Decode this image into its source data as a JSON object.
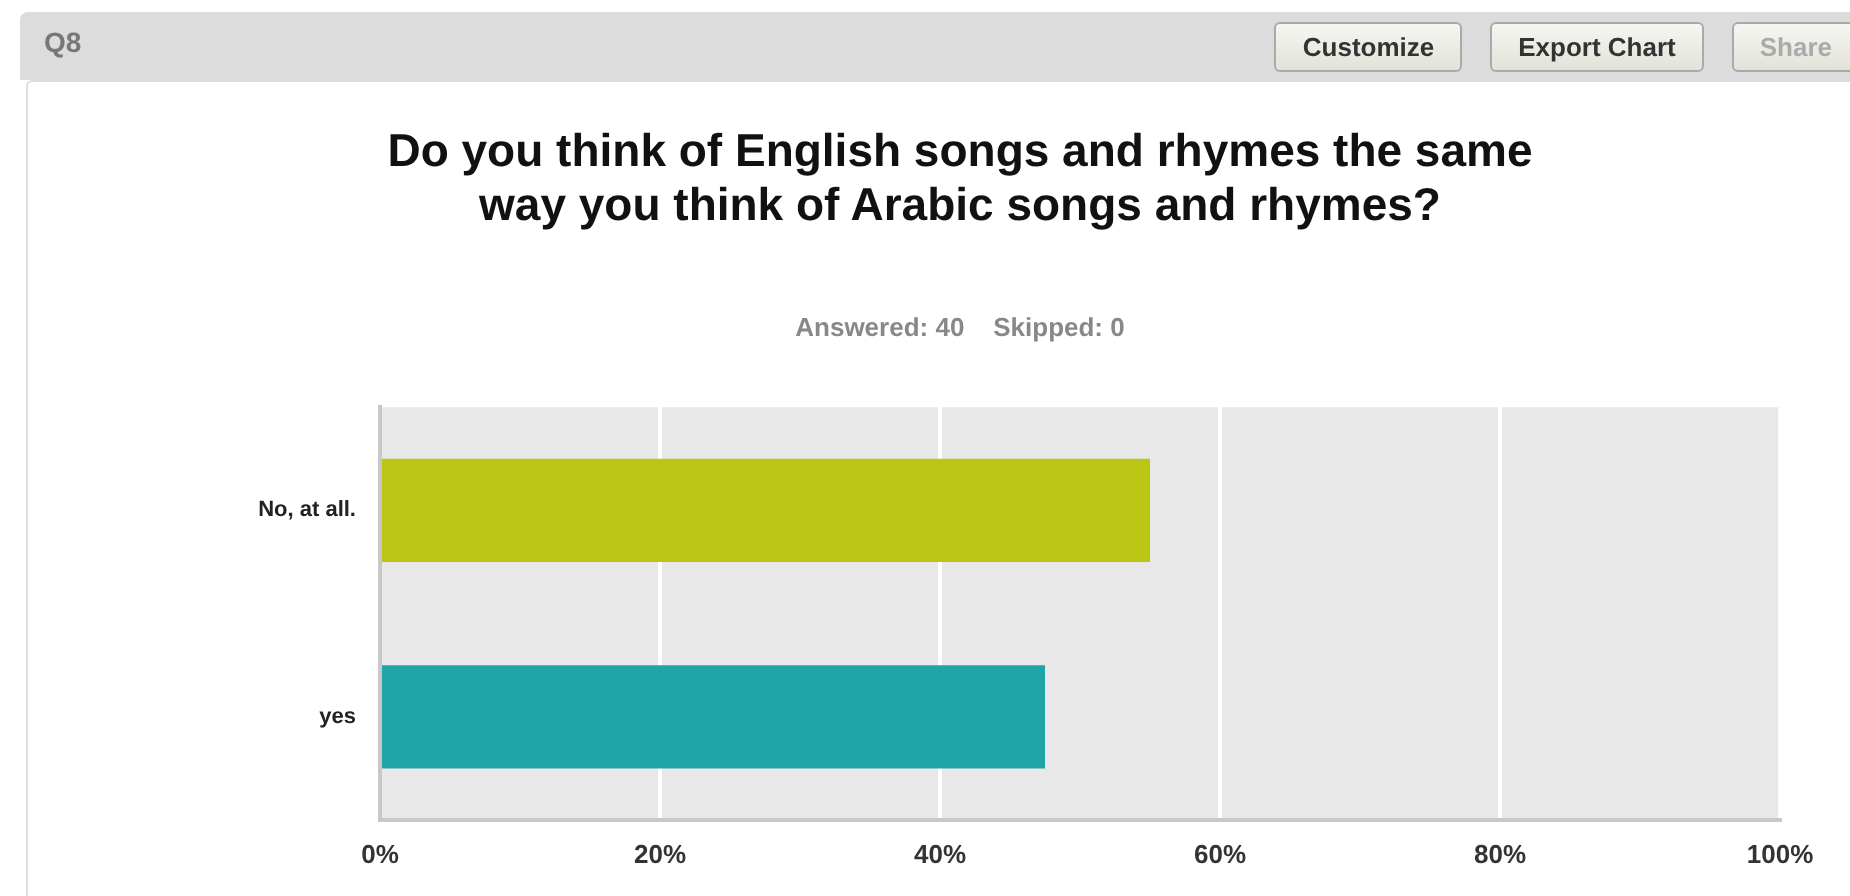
{
  "chart_data": {
    "type": "bar",
    "orientation": "horizontal",
    "title": "Do you think of English songs and rhymes the same way you think of Arabic songs and rhymes?",
    "subtitle": "Answered: 40    Skipped: 0",
    "annotations": [
      "Q8",
      "Customize",
      "Export Chart",
      "Share"
    ],
    "categories": [
      "No, at all.",
      "yes"
    ],
    "values": [
      55,
      47.5
    ],
    "colors": [
      "#bcc614",
      "#1fa5a8"
    ],
    "xlim": [
      0,
      100
    ],
    "xticks": [
      {
        "value": 0,
        "label": "0%"
      },
      {
        "value": 20,
        "label": "20%"
      },
      {
        "value": 40,
        "label": "40%"
      },
      {
        "value": 60,
        "label": "60%"
      },
      {
        "value": 80,
        "label": "80%"
      },
      {
        "value": 100,
        "label": "100%"
      }
    ],
    "grid": "x",
    "legend": false
  }
}
